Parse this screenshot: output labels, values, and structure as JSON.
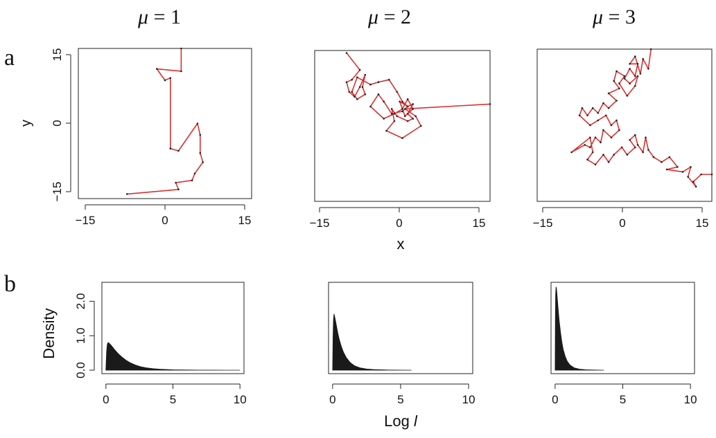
{
  "figure": {
    "panel_labels": [
      "a",
      "b"
    ],
    "x_axis_label_a": "x",
    "y_axis_label_a": "y",
    "x_axis_label_b_prefix": "Log ",
    "x_axis_label_b_italic": "l",
    "y_axis_label_b": "Density"
  },
  "chart_data": [
    {
      "type": "line",
      "title": "μ = 1",
      "title_symbol": "μ",
      "title_rest": " = 1",
      "xlim": [
        -15,
        17
      ],
      "ylim": [
        -17,
        16
      ],
      "xticks": [
        -15,
        0,
        15
      ],
      "xtick_labels": [
        "−15",
        "0",
        "15"
      ],
      "yticks": [
        -15,
        0,
        15
      ],
      "ytick_labels": [
        "−15",
        "0",
        "15"
      ],
      "line_color": "#d93030",
      "points": [
        [
          4,
          16
        ],
        [
          4,
          11
        ],
        [
          -0.5,
          11.5
        ],
        [
          1,
          9
        ],
        [
          2,
          9.5
        ],
        [
          2,
          -6
        ],
        [
          3.5,
          -6.5
        ],
        [
          7,
          -0.5
        ],
        [
          7.5,
          -3
        ],
        [
          7.5,
          -7
        ],
        [
          8,
          -9
        ],
        [
          6.5,
          -11.5
        ],
        [
          6,
          -13
        ],
        [
          3,
          -13.5
        ],
        [
          3.5,
          -15
        ],
        [
          -6,
          -16
        ]
      ]
    },
    {
      "type": "line",
      "title": "μ = 2",
      "title_symbol": "μ",
      "title_rest": " = 2",
      "xlim": [
        -16,
        17
      ],
      "ylim": [
        -16,
        15
      ],
      "xticks": [
        -15,
        0,
        15
      ],
      "xtick_labels": [
        "−15",
        "0",
        "15"
      ],
      "line_color": "#d93030",
      "points": [
        [
          -10,
          14.5
        ],
        [
          -7.5,
          11
        ],
        [
          -9,
          9
        ],
        [
          -10,
          8.5
        ],
        [
          -9.5,
          6.5
        ],
        [
          -8.5,
          5.5
        ],
        [
          -7.5,
          7.5
        ],
        [
          -6.5,
          10
        ],
        [
          -7,
          7.5
        ],
        [
          -6.5,
          6
        ],
        [
          -8,
          5
        ],
        [
          -9,
          6.5
        ],
        [
          -8,
          9.5
        ],
        [
          -5.5,
          8
        ],
        [
          -4,
          8.5
        ],
        [
          -2,
          9
        ],
        [
          -0.5,
          6.5
        ],
        [
          0.5,
          4.5
        ],
        [
          1.5,
          3.5
        ],
        [
          0.5,
          2.5
        ],
        [
          -1.5,
          2
        ],
        [
          -3,
          4.5
        ],
        [
          -4,
          6
        ],
        [
          -5.5,
          3.5
        ],
        [
          -3,
          1
        ],
        [
          -1,
          2
        ],
        [
          0.5,
          3
        ],
        [
          1.5,
          5
        ],
        [
          2.5,
          3
        ],
        [
          1,
          1.5
        ],
        [
          0,
          4.5
        ],
        [
          1.5,
          3.5
        ],
        [
          2.5,
          4
        ],
        [
          1.5,
          2
        ],
        [
          2.5,
          1
        ],
        [
          1.5,
          0.5
        ],
        [
          -0.5,
          1.5
        ],
        [
          -1.5,
          3
        ],
        [
          -1,
          0.5
        ],
        [
          -2.5,
          -1.5
        ],
        [
          0.5,
          -3
        ],
        [
          4,
          -0.5
        ],
        [
          3,
          1.5
        ],
        [
          1,
          3
        ],
        [
          17,
          4
        ]
      ]
    },
    {
      "type": "line",
      "title": "μ = 3",
      "title_symbol": "μ",
      "title_rest": " = 3",
      "xlim": [
        -16,
        17
      ],
      "ylim": [
        -16,
        15
      ],
      "xticks": [
        -15,
        0,
        15
      ],
      "xtick_labels": [
        "−15",
        "0",
        "15"
      ],
      "line_color": "#d93030",
      "points": [
        [
          5.5,
          15
        ],
        [
          5,
          11
        ],
        [
          4,
          13
        ],
        [
          3.5,
          10
        ],
        [
          2.5,
          13.5
        ],
        [
          1.5,
          12
        ],
        [
          3,
          12
        ],
        [
          2.5,
          9.5
        ],
        [
          1.5,
          11
        ],
        [
          0.5,
          9
        ],
        [
          1.5,
          8
        ],
        [
          3,
          9.5
        ],
        [
          2.5,
          7.5
        ],
        [
          1,
          5.5
        ],
        [
          -0.5,
          8
        ],
        [
          0.5,
          9.5
        ],
        [
          -1,
          10.5
        ],
        [
          -1.5,
          8.5
        ],
        [
          -0.5,
          7
        ],
        [
          -2.5,
          6
        ],
        [
          -1,
          4.5
        ],
        [
          -2.5,
          3
        ],
        [
          -3.5,
          4
        ],
        [
          -4.5,
          2
        ],
        [
          -5.5,
          3
        ],
        [
          -6.5,
          1.5
        ],
        [
          -7.5,
          3
        ],
        [
          -8,
          1.5
        ],
        [
          -6,
          -0.5
        ],
        [
          -4.5,
          0.5
        ],
        [
          -3,
          1.5
        ],
        [
          -2,
          -0.5
        ],
        [
          -1,
          0.5
        ],
        [
          -0.5,
          -1.5
        ],
        [
          -2,
          -3
        ],
        [
          -3.5,
          -1.5
        ],
        [
          -4,
          -4
        ],
        [
          -5,
          -3
        ],
        [
          -6,
          -5
        ],
        [
          -7,
          -4.5
        ],
        [
          -9.5,
          -6
        ],
        [
          -6,
          -3
        ],
        [
          -5.5,
          -6
        ],
        [
          -6.5,
          -7.5
        ],
        [
          -5,
          -8.5
        ],
        [
          -3.5,
          -6.5
        ],
        [
          -2.5,
          -8
        ],
        [
          -1.5,
          -6.5
        ],
        [
          0,
          -5
        ],
        [
          1,
          -6.5
        ],
        [
          2.5,
          -5
        ],
        [
          1.5,
          -3.5
        ],
        [
          2.5,
          -2.5
        ],
        [
          3,
          -4.5
        ],
        [
          4,
          -6
        ],
        [
          4.5,
          -3
        ],
        [
          5,
          -5.5
        ],
        [
          6,
          -7
        ],
        [
          7.5,
          -8
        ],
        [
          9,
          -7
        ],
        [
          10.5,
          -9
        ],
        [
          8.5,
          -9.5
        ],
        [
          11.5,
          -10
        ],
        [
          13,
          -9
        ],
        [
          12.5,
          -11
        ],
        [
          14,
          -13
        ],
        [
          13.5,
          -12
        ],
        [
          15,
          -10.5
        ],
        [
          17,
          -10.5
        ]
      ]
    },
    {
      "type": "area",
      "xlim": [
        -0.3,
        10.3
      ],
      "ylim": [
        -0.1,
        2.55
      ],
      "xticks": [
        0,
        5,
        10
      ],
      "xtick_labels": [
        "0",
        "5",
        "10"
      ],
      "yticks": [
        0,
        1,
        2
      ],
      "ytick_labels": [
        "0.0",
        "1.0",
        "2.0"
      ],
      "fill_color": "#1a1a1a",
      "x": [
        0,
        0.05,
        0.1,
        0.15,
        0.2,
        0.25,
        0.3,
        0.4,
        0.5,
        0.6,
        0.8,
        1.0,
        1.2,
        1.5,
        1.8,
        2.2,
        2.6,
        3.0,
        3.5,
        4.0,
        5.0,
        6.0,
        7.0,
        8.0,
        9.0,
        10.0
      ],
      "y": [
        0.05,
        0.55,
        0.74,
        0.8,
        0.8,
        0.78,
        0.76,
        0.72,
        0.67,
        0.62,
        0.53,
        0.45,
        0.38,
        0.29,
        0.22,
        0.15,
        0.1,
        0.07,
        0.045,
        0.03,
        0.012,
        0.006,
        0.003,
        0.002,
        0.001,
        0.001
      ]
    },
    {
      "type": "area",
      "xlim": [
        -0.3,
        10.3
      ],
      "ylim": [
        -0.1,
        2.55
      ],
      "xticks": [
        0,
        5,
        10
      ],
      "xtick_labels": [
        "0",
        "5",
        "10"
      ],
      "fill_color": "#1a1a1a",
      "x": [
        0,
        0.03,
        0.06,
        0.1,
        0.13,
        0.17,
        0.22,
        0.3,
        0.4,
        0.5,
        0.65,
        0.8,
        1.0,
        1.3,
        1.6,
        2.0,
        2.5,
        3.0,
        4.0,
        5.0,
        5.8
      ],
      "y": [
        0.05,
        1.0,
        1.45,
        1.62,
        1.6,
        1.52,
        1.42,
        1.25,
        1.05,
        0.88,
        0.68,
        0.52,
        0.37,
        0.22,
        0.13,
        0.07,
        0.035,
        0.02,
        0.007,
        0.002,
        0.001
      ]
    },
    {
      "type": "area",
      "xlim": [
        -0.3,
        10.3
      ],
      "ylim": [
        -0.1,
        2.55
      ],
      "xticks": [
        0,
        5,
        10
      ],
      "xtick_labels": [
        "0",
        "5",
        "10"
      ],
      "fill_color": "#1a1a1a",
      "x": [
        0,
        0.02,
        0.04,
        0.07,
        0.1,
        0.13,
        0.17,
        0.22,
        0.3,
        0.4,
        0.5,
        0.6,
        0.75,
        0.9,
        1.1,
        1.4,
        1.8,
        2.3,
        3.0,
        3.6
      ],
      "y": [
        0.05,
        1.4,
        2.2,
        2.42,
        2.38,
        2.25,
        2.05,
        1.8,
        1.45,
        1.1,
        0.82,
        0.6,
        0.4,
        0.26,
        0.15,
        0.07,
        0.03,
        0.012,
        0.004,
        0.001
      ]
    }
  ]
}
